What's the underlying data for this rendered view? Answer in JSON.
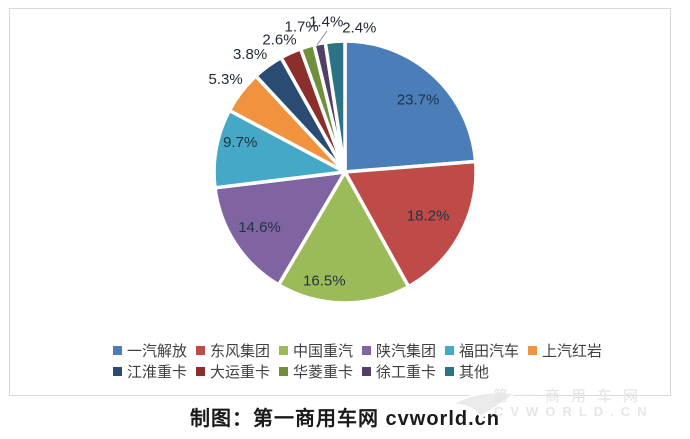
{
  "chart_data": {
    "type": "pie",
    "title": "",
    "legend_position": "bottom",
    "start_angle_deg": 0,
    "direction": "clockwise",
    "labels": [
      "一汽解放",
      "东风集团",
      "中国重汽",
      "陕汽集团",
      "福田汽车",
      "上汽红岩",
      "江淮重卡",
      "大运重卡",
      "华菱重卡",
      "徐工重卡",
      "其他"
    ],
    "values": [
      23.7,
      18.2,
      16.5,
      14.6,
      9.7,
      5.3,
      3.8,
      2.6,
      1.7,
      1.4,
      2.4
    ],
    "value_labels": [
      "23.7%",
      "18.2%",
      "16.5%",
      "14.6%",
      "9.7%",
      "5.3%",
      "3.8%",
      "2.6%",
      "1.7%",
      "1.4%",
      "2.4%"
    ],
    "colors": [
      "#4B7DB8",
      "#BE4B48",
      "#9BBB59",
      "#8064A2",
      "#44A8C6",
      "#F0923E",
      "#2B4C72",
      "#8C2E2C",
      "#6F8F3C",
      "#503F66",
      "#2C7385"
    ]
  },
  "caption": {
    "text": "制图：第一商用车网 cvworld.cn"
  },
  "watermark": {
    "line1": "第一商用车网",
    "line2": "CVWORLD.CN"
  }
}
